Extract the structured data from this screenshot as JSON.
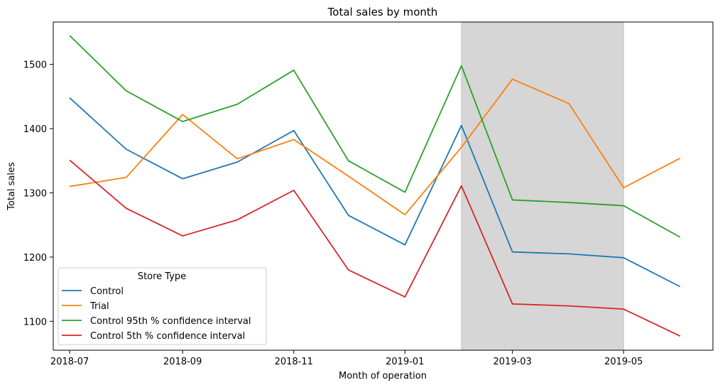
{
  "chart_data": {
    "type": "line",
    "title": "Total sales by month",
    "xlabel": "Month of operation",
    "ylabel": "Total sales",
    "x": [
      "2018-07",
      "2018-08",
      "2018-09",
      "2018-10",
      "2018-11",
      "2018-12",
      "2019-01",
      "2019-02",
      "2019-03",
      "2019-04",
      "2019-05",
      "2019-06"
    ],
    "x_tick_labels": [
      "2018-07",
      "2018-09",
      "2018-11",
      "2019-01",
      "2019-03",
      "2019-05"
    ],
    "y_ticks": [
      1100,
      1200,
      1300,
      1400,
      1500
    ],
    "ylim": [
      1055,
      1566
    ],
    "xlim": [
      "2018-06-22",
      "2019-06-19"
    ],
    "grid": false,
    "legend": {
      "title": "Store Type",
      "placement": "lower-left"
    },
    "shaded_region": {
      "start": "2019-02",
      "end": "2019-05",
      "color": "#d6d6d6"
    },
    "series": [
      {
        "name": "Control",
        "color": "#1f77b4",
        "values": [
          1448,
          1368,
          1322,
          1348,
          1397,
          1265,
          1219,
          1405,
          1208,
          1205,
          1199,
          1154
        ]
      },
      {
        "name": "Trial",
        "color": "#ff7f0e",
        "values": [
          1310,
          1324,
          1422,
          1353,
          1383,
          1326,
          1266,
          1371,
          1477,
          1439,
          1308,
          1354
        ]
      },
      {
        "name": "Control 95th % confidence interval",
        "color": "#2ca02c",
        "values": [
          1545,
          1459,
          1411,
          1438,
          1491,
          1350,
          1301,
          1498,
          1289,
          1285,
          1280,
          1231
        ]
      },
      {
        "name": "Control 5th % confidence interval",
        "color": "#d62728",
        "values": [
          1351,
          1276,
          1233,
          1258,
          1304,
          1180,
          1138,
          1311,
          1127,
          1124,
          1119,
          1077
        ]
      }
    ]
  }
}
